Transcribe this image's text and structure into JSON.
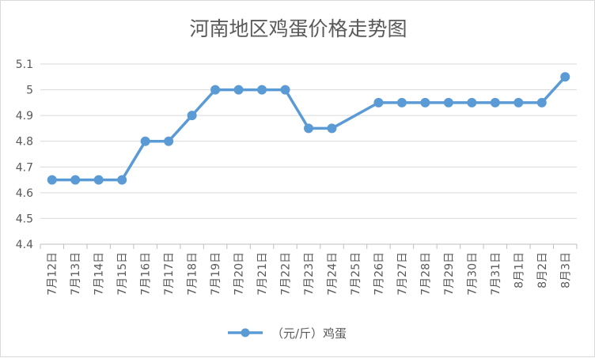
{
  "chart_data": {
    "type": "line",
    "title": "河南地区鸡蛋价格走势图",
    "xlabel": "",
    "ylabel": "",
    "categories": [
      "7月12日",
      "7月13日",
      "7月14日",
      "7月15日",
      "7月16日",
      "7月17日",
      "7月18日",
      "7月19日",
      "7月20日",
      "7月21日",
      "7月22日",
      "7月23日",
      "7月24日",
      "7月25日",
      "7月26日",
      "7月27日",
      "7月28日",
      "7月29日",
      "7月30日",
      "7月31日",
      "8月1日",
      "8月2日",
      "8月3日"
    ],
    "series": [
      {
        "name": "（元/斤）鸡蛋",
        "color": "#5b9bd5",
        "values": [
          4.65,
          4.65,
          4.65,
          4.65,
          4.8,
          4.8,
          4.9,
          5.0,
          5.0,
          5.0,
          5.0,
          4.85,
          4.85,
          null,
          4.95,
          4.95,
          4.95,
          4.95,
          4.95,
          4.95,
          4.95,
          4.95,
          5.05
        ]
      }
    ],
    "ylim": [
      4.4,
      5.1
    ],
    "yticks": [
      "4.4",
      "4.5",
      "4.6",
      "4.7",
      "4.8",
      "4.9",
      "5",
      "5.1"
    ],
    "grid": true,
    "legend_position": "bottom",
    "gridline_color": "#d9d9d9",
    "axis_color": "#bfbfbf"
  }
}
